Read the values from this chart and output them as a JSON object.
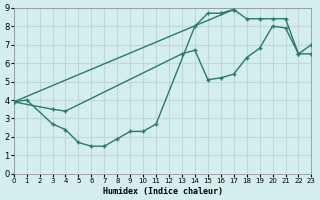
{
  "xlabel": "Humidex (Indice chaleur)",
  "bg_color": "#d4eeed",
  "grid_color": "#c0d8d8",
  "line_color": "#2a7a6a",
  "xlim": [
    0,
    23
  ],
  "ylim": [
    0,
    9
  ],
  "line1": {
    "x": [
      0,
      1,
      3,
      4,
      5,
      6,
      7,
      8,
      9,
      10,
      11,
      14,
      15,
      16,
      17
    ],
    "y": [
      3.9,
      4.0,
      2.7,
      2.4,
      1.7,
      1.5,
      1.5,
      1.9,
      2.3,
      2.3,
      2.7,
      8.0,
      8.7,
      8.7,
      8.9
    ]
  },
  "line2": {
    "x": [
      0,
      3,
      4,
      13,
      14,
      15,
      16,
      17,
      18,
      19,
      20,
      21,
      22,
      23
    ],
    "y": [
      3.9,
      3.5,
      3.4,
      6.5,
      6.7,
      5.1,
      5.2,
      5.4,
      6.3,
      6.8,
      8.0,
      7.9,
      6.5,
      6.5
    ]
  },
  "line3": {
    "x": [
      0,
      17,
      18,
      19,
      20,
      21,
      22,
      23
    ],
    "y": [
      3.9,
      8.9,
      8.4,
      8.4,
      8.4,
      8.4,
      6.5,
      7.0
    ]
  }
}
